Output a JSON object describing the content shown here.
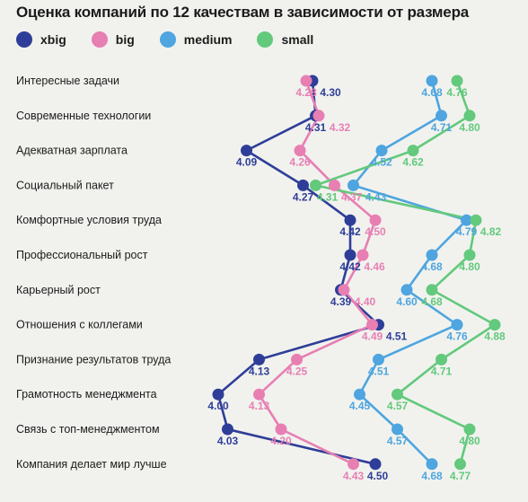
{
  "chart_data": {
    "type": "line",
    "title": "Оценка компаний по 12 качествам в зависимости от размера",
    "categories": [
      "Интересные задачи",
      "Современные технологии",
      "Адекватная зарплата",
      "Социальный пакет",
      "Комфортные условия труда",
      "Профессиональный рост",
      "Карьерный рост",
      "Отношения с коллегами",
      "Признание результатов труда",
      "Грамотность менеджмента",
      "Связь с топ-менеджментом",
      "Компания делает мир лучше"
    ],
    "series": [
      {
        "name": "xbig",
        "color": "#2e3e98",
        "values": [
          4.3,
          4.31,
          4.09,
          4.27,
          4.42,
          4.42,
          4.39,
          4.51,
          4.13,
          4.0,
          4.03,
          4.5
        ]
      },
      {
        "name": "big",
        "color": "#e77fb3",
        "values": [
          4.28,
          4.32,
          4.26,
          4.37,
          4.5,
          4.46,
          4.4,
          4.49,
          4.25,
          4.13,
          4.2,
          4.43
        ]
      },
      {
        "name": "medium",
        "color": "#4ea5df",
        "values": [
          4.68,
          4.71,
          4.52,
          4.43,
          4.79,
          4.68,
          4.6,
          4.76,
          4.51,
          4.45,
          4.57,
          4.68
        ]
      },
      {
        "name": "small",
        "color": "#63c97c",
        "values": [
          4.76,
          4.8,
          4.62,
          4.31,
          4.82,
          4.8,
          4.68,
          4.88,
          4.71,
          4.57,
          4.8,
          4.77
        ]
      }
    ],
    "xlim": [
      4.0,
      4.88
    ],
    "grid": false,
    "legend": "top-left"
  }
}
